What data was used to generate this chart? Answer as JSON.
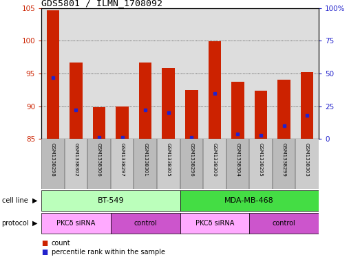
{
  "title": "GDS5801 / ILMN_1708092",
  "samples": [
    "GSM1338298",
    "GSM1338302",
    "GSM1338306",
    "GSM1338297",
    "GSM1338301",
    "GSM1338305",
    "GSM1338296",
    "GSM1338300",
    "GSM1338304",
    "GSM1338295",
    "GSM1338299",
    "GSM1338303"
  ],
  "count_values": [
    104.7,
    96.7,
    89.9,
    90.0,
    96.7,
    95.9,
    92.5,
    99.9,
    93.8,
    92.4,
    94.1,
    95.2
  ],
  "percentile_values": [
    47,
    22,
    1,
    1,
    22,
    20,
    1,
    35,
    4,
    3,
    10,
    18
  ],
  "ylim_left": [
    85,
    105
  ],
  "ylim_right": [
    0,
    100
  ],
  "yticks_left": [
    85,
    90,
    95,
    100,
    105
  ],
  "yticks_right": [
    0,
    25,
    50,
    75,
    100
  ],
  "ytick_labels_right": [
    "0",
    "25",
    "50",
    "75",
    "100%"
  ],
  "bar_color": "#cc2200",
  "dot_color": "#2222cc",
  "bar_bottom": 85,
  "bar_width": 0.55,
  "cell_line_groups": [
    {
      "label": "BT-549",
      "start": 0,
      "end": 5,
      "color": "#bbffbb"
    },
    {
      "label": "MDA-MB-468",
      "start": 6,
      "end": 11,
      "color": "#44dd44"
    }
  ],
  "protocol_groups": [
    {
      "label": "PKCδ siRNA",
      "start": 0,
      "end": 2,
      "color": "#ffaaff"
    },
    {
      "label": "control",
      "start": 3,
      "end": 5,
      "color": "#cc55cc"
    },
    {
      "label": "PKCδ siRNA",
      "start": 6,
      "end": 8,
      "color": "#ffaaff"
    },
    {
      "label": "control",
      "start": 9,
      "end": 11,
      "color": "#cc55cc"
    }
  ],
  "axis_bg": "#dddddd",
  "left_tick_color": "#cc2200",
  "right_tick_color": "#2222cc",
  "sample_bg_odd": "#cccccc",
  "sample_bg_even": "#bbbbbb"
}
